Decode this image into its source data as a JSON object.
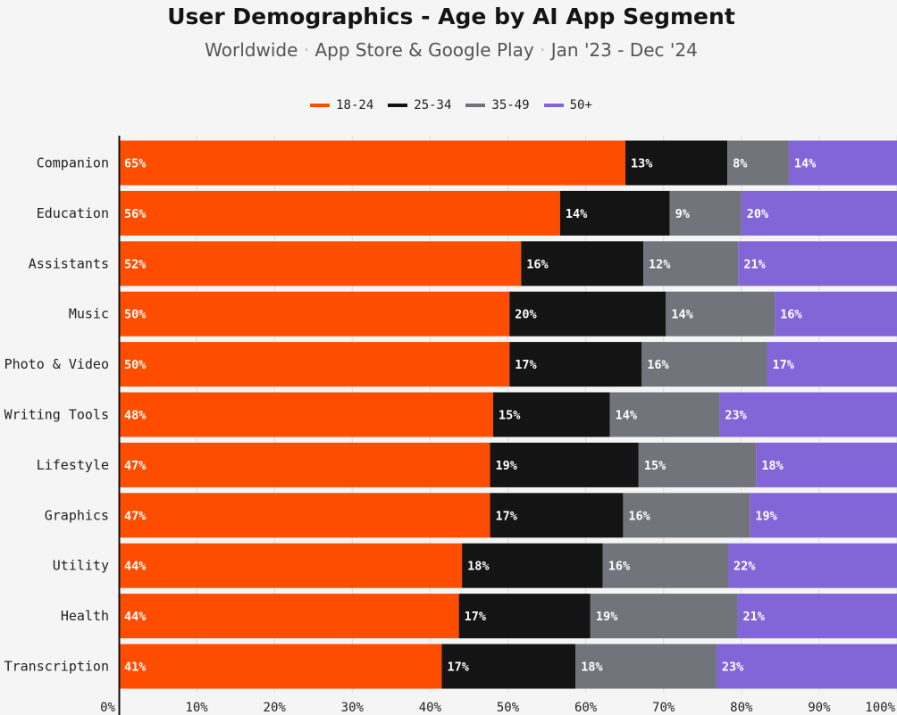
{
  "title": "User Demographics - Age by AI App Segment",
  "subtitle": {
    "part1": "Worldwide",
    "separator": "·",
    "part2": "App Store & Google Play",
    "part3": "Jan '23 - Dec '24"
  },
  "colors": {
    "18-24": "#ff4d00",
    "25-34": "#141414",
    "35-49": "#71747a",
    "50+": "#8265d6"
  },
  "chart_data": {
    "type": "bar",
    "orientation": "horizontal",
    "stacked": true,
    "title": "User Demographics - Age by AI App Segment",
    "xlabel": "",
    "ylabel": "",
    "xlim": [
      0,
      100
    ],
    "x_ticks": [
      "0%",
      "10%",
      "20%",
      "30%",
      "40%",
      "50%",
      "60%",
      "70%",
      "80%",
      "90%",
      "100%"
    ],
    "legend_position": "top-center",
    "categories": [
      "Companion",
      "Education",
      "Assistants",
      "Music",
      "Photo & Video",
      "Writing Tools",
      "Lifestyle",
      "Graphics",
      "Utility",
      "Health",
      "Transcription"
    ],
    "series": [
      {
        "name": "18-24",
        "values": [
          65,
          56,
          52,
          50,
          50,
          48,
          47,
          47,
          44,
          44,
          41
        ]
      },
      {
        "name": "25-34",
        "values": [
          13,
          14,
          16,
          20,
          17,
          15,
          19,
          17,
          18,
          17,
          17
        ]
      },
      {
        "name": "35-49",
        "values": [
          8,
          9,
          12,
          14,
          16,
          14,
          15,
          16,
          16,
          19,
          18
        ]
      },
      {
        "name": "50+",
        "values": [
          14,
          20,
          21,
          16,
          17,
          23,
          18,
          19,
          22,
          21,
          23
        ]
      }
    ],
    "display_positions": [
      [
        0,
        65.1,
        78.2,
        86.1
      ],
      [
        0,
        56.7,
        70.8,
        80.0
      ],
      [
        0,
        51.7,
        67.4,
        79.6
      ],
      [
        0,
        50.2,
        70.3,
        84.3
      ],
      [
        0,
        50.2,
        67.2,
        83.3
      ],
      [
        0,
        48.1,
        63.1,
        77.2
      ],
      [
        0,
        47.7,
        66.8,
        81.9
      ],
      [
        0,
        47.7,
        64.8,
        81.1
      ],
      [
        0,
        44.1,
        62.2,
        78.3
      ],
      [
        0,
        43.7,
        60.6,
        79.5
      ],
      [
        0,
        41.5,
        58.7,
        76.8
      ]
    ]
  }
}
